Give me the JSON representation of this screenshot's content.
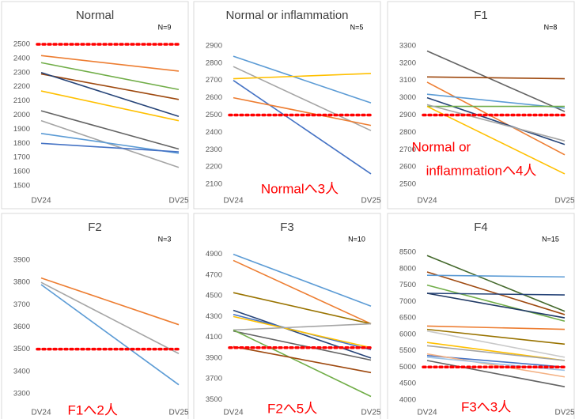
{
  "chart_data": [
    {
      "type": "slope",
      "title": "Normal",
      "n_label": "N=9",
      "categories": [
        "DV24",
        "DV25"
      ],
      "ylim": [
        1450,
        2550
      ],
      "yticks": [
        1500,
        1600,
        1700,
        1800,
        1900,
        2000,
        2100,
        2200,
        2300,
        2400,
        2500
      ],
      "threshold": 2500,
      "threshold_color": "#ff0000",
      "series": [
        {
          "color": "#ed7d31",
          "values": [
            2420,
            2310
          ]
        },
        {
          "color": "#70ad47",
          "values": [
            2370,
            2180
          ]
        },
        {
          "color": "#9e480e",
          "values": [
            2290,
            2110
          ]
        },
        {
          "color": "#264478",
          "values": [
            2300,
            1990
          ]
        },
        {
          "color": "#ffc000",
          "values": [
            2170,
            1960
          ]
        },
        {
          "color": "#636363",
          "values": [
            2030,
            1760
          ]
        },
        {
          "color": "#a5a5a5",
          "values": [
            1960,
            1630
          ]
        },
        {
          "color": "#5b9bd5",
          "values": [
            1870,
            1730
          ]
        },
        {
          "color": "#4472c4",
          "values": [
            1800,
            1740
          ]
        }
      ]
    },
    {
      "type": "slope",
      "title": "Normal or inflammation",
      "n_label": "N=5",
      "categories": [
        "DV24",
        "DV25"
      ],
      "annotation": [
        "Normalへ3人"
      ],
      "ylim": [
        2050,
        2950
      ],
      "yticks": [
        2100,
        2200,
        2300,
        2400,
        2500,
        2600,
        2700,
        2800,
        2900
      ],
      "threshold": 2500,
      "threshold_color": "#ff0000",
      "series": [
        {
          "color": "#5b9bd5",
          "values": [
            2840,
            2570
          ]
        },
        {
          "color": "#a5a5a5",
          "values": [
            2780,
            2410
          ]
        },
        {
          "color": "#ffc000",
          "values": [
            2710,
            2740
          ]
        },
        {
          "color": "#4472c4",
          "values": [
            2700,
            2160
          ]
        },
        {
          "color": "#ed7d31",
          "values": [
            2600,
            2440
          ]
        }
      ]
    },
    {
      "type": "slope",
      "title": "F1",
      "n_label": "N=8",
      "categories": [
        "DV24",
        "DV25"
      ],
      "annotation": [
        "Normal or",
        "inflammationへ4人"
      ],
      "ylim": [
        2450,
        3350
      ],
      "yticks": [
        2500,
        2600,
        2700,
        2800,
        2900,
        3000,
        3100,
        3200,
        3300
      ],
      "threshold": 2900,
      "threshold_color": "#ff0000",
      "series": [
        {
          "color": "#636363",
          "values": [
            3270,
            2920
          ]
        },
        {
          "color": "#9e480e",
          "values": [
            3120,
            3110
          ]
        },
        {
          "color": "#ed7d31",
          "values": [
            3090,
            2670
          ]
        },
        {
          "color": "#5b9bd5",
          "values": [
            3020,
            2940
          ]
        },
        {
          "color": "#264478",
          "values": [
            3000,
            2730
          ]
        },
        {
          "color": "#70ad47",
          "values": [
            2950,
            2950
          ]
        },
        {
          "color": "#a5a5a5",
          "values": [
            2960,
            2750
          ]
        },
        {
          "color": "#ffc000",
          "values": [
            2950,
            2560
          ]
        }
      ]
    },
    {
      "type": "slope",
      "title": "F2",
      "n_label": "N=3",
      "categories": [
        "DV24",
        "DV25"
      ],
      "annotation": [
        "F1へ2人"
      ],
      "ylim": [
        3250,
        3950
      ],
      "yticks": [
        3300,
        3400,
        3500,
        3600,
        3700,
        3800,
        3900
      ],
      "threshold": 3500,
      "threshold_color": "#ff0000",
      "series": [
        {
          "color": "#ed7d31",
          "values": [
            3820,
            3610
          ]
        },
        {
          "color": "#a5a5a5",
          "values": [
            3800,
            3480
          ]
        },
        {
          "color": "#5b9bd5",
          "values": [
            3790,
            3340
          ]
        }
      ]
    },
    {
      "type": "slope",
      "title": "F3",
      "n_label": "N=10",
      "categories": [
        "DV24",
        "DV25"
      ],
      "annotation": [
        "F2へ5人"
      ],
      "ylim": [
        3450,
        4950
      ],
      "yticks": [
        3500,
        3700,
        3900,
        4100,
        4300,
        4500,
        4700,
        4900
      ],
      "threshold": 4000,
      "threshold_color": "#ff0000",
      "series": [
        {
          "color": "#5b9bd5",
          "values": [
            4900,
            4400
          ]
        },
        {
          "color": "#ed7d31",
          "values": [
            4840,
            4230
          ]
        },
        {
          "color": "#997300",
          "values": [
            4530,
            4230
          ]
        },
        {
          "color": "#264478",
          "values": [
            4360,
            3900
          ]
        },
        {
          "color": "#4472c4",
          "values": [
            4320,
            3980
          ]
        },
        {
          "color": "#ffc000",
          "values": [
            4300,
            4000
          ]
        },
        {
          "color": "#a5a5a5",
          "values": [
            4170,
            4230
          ]
        },
        {
          "color": "#636363",
          "values": [
            4160,
            3880
          ]
        },
        {
          "color": "#70ad47",
          "values": [
            4170,
            3530
          ]
        },
        {
          "color": "#9e480e",
          "values": [
            4010,
            3760
          ]
        }
      ]
    },
    {
      "type": "slope",
      "title": "F4",
      "n_label": "N=15",
      "categories": [
        "DV24",
        "DV25"
      ],
      "annotation": [
        "F3へ3人"
      ],
      "ylim": [
        3850,
        8600
      ],
      "yticks": [
        4000,
        4500,
        5000,
        5500,
        6000,
        6500,
        7000,
        7500,
        8000,
        8500
      ],
      "threshold": 5000,
      "threshold_color": "#ff0000",
      "series": [
        {
          "color": "#43682b",
          "values": [
            8400,
            6700
          ]
        },
        {
          "color": "#9e480e",
          "values": [
            7900,
            6600
          ]
        },
        {
          "color": "#70ad47",
          "values": [
            7500,
            6400
          ]
        },
        {
          "color": "#5b9bd5",
          "values": [
            7800,
            7750
          ]
        },
        {
          "color": "#264478",
          "values": [
            7250,
            7200
          ]
        },
        {
          "color": "#1f3864",
          "values": [
            7250,
            6500
          ]
        },
        {
          "color": "#ed7d31",
          "values": [
            6250,
            6150
          ]
        },
        {
          "color": "#997300",
          "values": [
            6150,
            5700
          ]
        },
        {
          "color": "#c9c9c9",
          "values": [
            6100,
            5300
          ]
        },
        {
          "color": "#ffc000",
          "values": [
            5750,
            5200
          ]
        },
        {
          "color": "#a5a5a5",
          "values": [
            5650,
            5200
          ]
        },
        {
          "color": "#4472c4",
          "values": [
            5350,
            5000
          ]
        },
        {
          "color": "#f4b183",
          "values": [
            5400,
            4700
          ]
        },
        {
          "color": "#636363",
          "values": [
            5200,
            4400
          ]
        },
        {
          "color": "#9dc3e6",
          "values": [
            5300,
            4900
          ]
        }
      ]
    }
  ]
}
